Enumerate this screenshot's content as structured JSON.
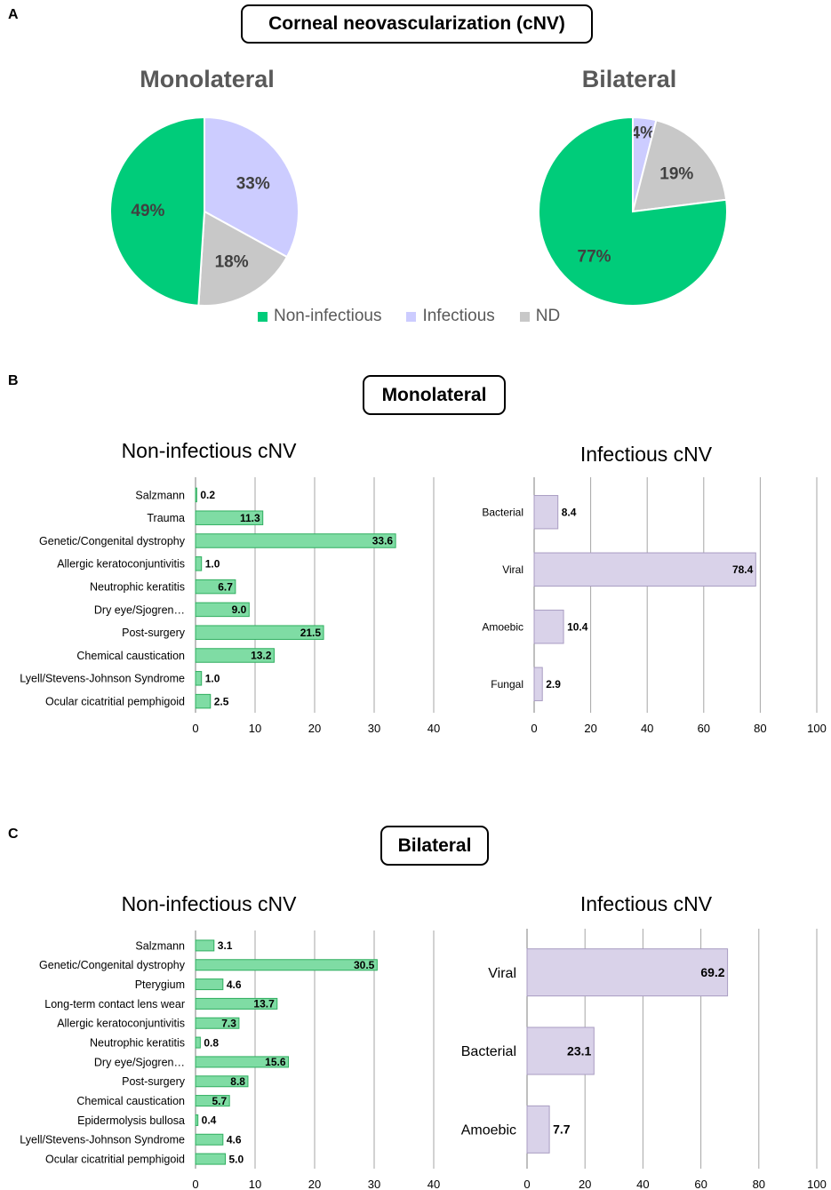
{
  "colors": {
    "non_infectious": "#00cc7a",
    "infectious": "#ccccff",
    "nd": "#c8c8c8",
    "bar_green": "#7fdca4",
    "bar_green_border": "#2fae5f",
    "bar_purple": "#d9d2e9",
    "bar_purple_border": "#a99cc2",
    "grid": "#a6a6a6"
  },
  "panels": {
    "a": "A",
    "b": "B",
    "c": "C"
  },
  "main_title": "Corneal neovascularization (cNV)",
  "legend": {
    "non_infectious": "Non-infectious",
    "infectious": "Infectious",
    "nd": "ND"
  },
  "section_titles": {
    "monolateral": "Monolateral",
    "bilateral": "Bilateral"
  },
  "chart_data": [
    {
      "id": "pie_monolateral",
      "type": "pie",
      "title": "Monolateral",
      "slices": [
        {
          "label": "Infectious",
          "value": 33,
          "display": "33%"
        },
        {
          "label": "ND",
          "value": 18,
          "display": "18%"
        },
        {
          "label": "Non-infectious",
          "value": 49,
          "display": "49%"
        }
      ]
    },
    {
      "id": "pie_bilateral",
      "type": "pie",
      "title": "Bilateral",
      "slices": [
        {
          "label": "Infectious",
          "value": 4,
          "display": "4%"
        },
        {
          "label": "ND",
          "value": 19,
          "display": "19%"
        },
        {
          "label": "Non-infectious",
          "value": 77,
          "display": "77%"
        }
      ]
    },
    {
      "id": "bar_mono_noninf",
      "type": "bar",
      "orientation": "horizontal",
      "title": "Non-infectious cNV",
      "categories": [
        "Salzmann",
        "Trauma",
        "Genetic/Congenital dystrophy",
        "Allergic keratoconjuntivitis",
        "Neutrophic keratitis",
        "Dry eye/Sjogren…",
        "Post-surgery",
        "Chemical caustication",
        "Lyell/Stevens-Johnson Syndrome",
        "Ocular cicatritial pemphigoid"
      ],
      "values": [
        0.2,
        11.3,
        33.6,
        1.0,
        6.7,
        9.0,
        21.5,
        13.2,
        1.0,
        2.5
      ],
      "value_labels": [
        "0.2",
        "11.3",
        "33.6",
        "1.0",
        "6.7",
        "9.0",
        "21.5",
        "13.2",
        "1.0",
        "2.5"
      ],
      "xlim": [
        0,
        40
      ],
      "xticks": [
        "0",
        "10",
        "20",
        "30",
        "40"
      ],
      "grid": true
    },
    {
      "id": "bar_mono_inf",
      "type": "bar",
      "orientation": "horizontal",
      "title": "Infectious cNV",
      "categories": [
        "Bacterial",
        "Viral",
        "Amoebic",
        "Fungal"
      ],
      "values": [
        8.4,
        78.4,
        10.4,
        2.9
      ],
      "value_labels": [
        "8.4",
        "78.4",
        "10.4",
        "2.9"
      ],
      "xlim": [
        0,
        100
      ],
      "xticks": [
        "0",
        "20",
        "40",
        "60",
        "80",
        "100"
      ],
      "grid": true
    },
    {
      "id": "bar_bi_noninf",
      "type": "bar",
      "orientation": "horizontal",
      "title": "Non-infectious cNV",
      "categories": [
        "Salzmann",
        "Genetic/Congenital dystrophy",
        "Pterygium",
        "Long-term contact lens wear",
        "Allergic keratoconjuntivitis",
        "Neutrophic keratitis",
        "Dry eye/Sjogren…",
        "Post-surgery",
        "Chemical caustication",
        "Epidermolysis bullosa",
        "Lyell/Stevens-Johnson Syndrome",
        "Ocular cicatritial pemphigoid"
      ],
      "values": [
        3.1,
        30.5,
        4.6,
        13.7,
        7.3,
        0.8,
        15.6,
        8.8,
        5.7,
        0.4,
        4.6,
        5.0
      ],
      "value_labels": [
        "3.1",
        "30.5",
        "4.6",
        "13.7",
        "7.3",
        "0.8",
        "15.6",
        "8.8",
        "5.7",
        "0.4",
        "4.6",
        "5.0"
      ],
      "xlim": [
        0,
        40
      ],
      "xticks": [
        "0",
        "10",
        "20",
        "30",
        "40"
      ],
      "grid": true
    },
    {
      "id": "bar_bi_inf",
      "type": "bar",
      "orientation": "horizontal",
      "title": "Infectious cNV",
      "categories": [
        "Viral",
        "Bacterial",
        "Amoebic"
      ],
      "values": [
        69.2,
        23.1,
        7.7
      ],
      "value_labels": [
        "69.2",
        "23.1",
        "7.7"
      ],
      "xlim": [
        0,
        100
      ],
      "xticks": [
        "0",
        "20",
        "40",
        "60",
        "80",
        "100"
      ],
      "grid": true
    }
  ]
}
